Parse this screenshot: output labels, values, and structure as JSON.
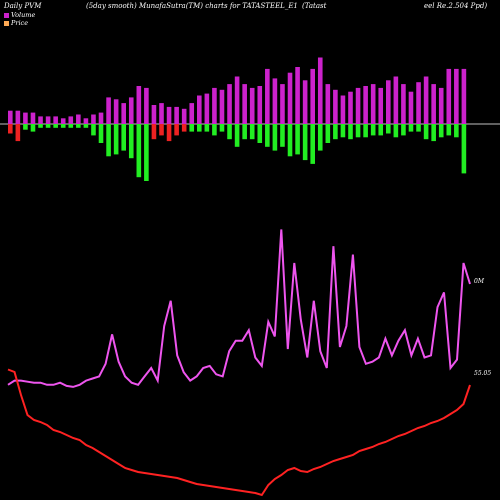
{
  "header": {
    "left": "Daily PVM",
    "mid1": "(5day smooth) MunafaSutra(TM) charts for TATASTEEL_E1",
    "mid2": "(Tatast",
    "right": "eel Re.2.504 Ppd)"
  },
  "legend": [
    {
      "label": "Volume",
      "color": "#cc22cc"
    },
    {
      "label": "Price",
      "color": "#ffaa55"
    }
  ],
  "labels": {
    "volume_end": "0M",
    "price_end": "55.05"
  },
  "colors": {
    "background": "#000000",
    "vol_up": "#cc22cc",
    "vol_down": "#22ee22",
    "vol_mixed": "#ee2222",
    "pvm_line": "#ee55ee",
    "price_line": "#ff2222",
    "axis": "#ffffff"
  },
  "chart_data": {
    "type": "bar",
    "series_note": "up/down volume bars",
    "up_values": [
      0.35,
      0.35,
      0.3,
      0.3,
      0.2,
      0.2,
      0.2,
      0.15,
      0.2,
      0.25,
      0.15,
      0.25,
      0.3,
      0.7,
      0.65,
      0.55,
      0.7,
      1.0,
      0.95,
      0.5,
      0.55,
      0.45,
      0.45,
      0.4,
      0.55,
      0.75,
      0.8,
      0.95,
      0.9,
      1.05,
      1.25,
      1.05,
      0.95,
      1.0,
      1.45,
      1.2,
      1.05,
      1.35,
      1.5,
      1.15,
      1.45,
      1.75,
      1.05,
      0.9,
      0.75,
      0.85,
      0.95,
      1.0,
      1.05,
      0.95,
      1.15,
      1.25,
      1.05,
      0.85,
      1.1,
      1.25,
      1.05,
      0.95,
      1.45,
      1.45,
      1.45
    ],
    "down_values": [
      0.25,
      0.45,
      0.15,
      0.2,
      0.1,
      0.1,
      0.1,
      0.1,
      0.1,
      0.1,
      0.1,
      0.3,
      0.5,
      0.85,
      0.8,
      0.7,
      0.9,
      1.4,
      1.5,
      0.4,
      0.3,
      0.45,
      0.3,
      0.2,
      0.2,
      0.2,
      0.2,
      0.3,
      0.2,
      0.4,
      0.6,
      0.4,
      0.4,
      0.5,
      0.6,
      0.7,
      0.6,
      0.85,
      0.8,
      0.95,
      1.05,
      0.7,
      0.5,
      0.4,
      0.35,
      0.4,
      0.35,
      0.35,
      0.3,
      0.3,
      0.25,
      0.35,
      0.3,
      0.2,
      0.2,
      0.4,
      0.45,
      0.35,
      0.3,
      0.35,
      1.3
    ],
    "down_color_kind": [
      1,
      1,
      0,
      0,
      0,
      0,
      0,
      0,
      0,
      0,
      0,
      0,
      0,
      0,
      0,
      0,
      0,
      0,
      0,
      1,
      1,
      1,
      1,
      1,
      0,
      0,
      0,
      0,
      0,
      0,
      0,
      0,
      0,
      0,
      0,
      0,
      0,
      0,
      0,
      0,
      0,
      0,
      0,
      0,
      0,
      0,
      0,
      0,
      0,
      0,
      0,
      0,
      0,
      0,
      0,
      0,
      0,
      0,
      0,
      0,
      0
    ],
    "pvm": [
      5.2,
      5.4,
      5.4,
      5.35,
      5.3,
      5.3,
      5.2,
      5.2,
      5.3,
      5.15,
      5.1,
      5.2,
      5.4,
      5.5,
      5.6,
      6.2,
      7.6,
      6.3,
      5.6,
      5.3,
      5.2,
      5.6,
      6.0,
      5.4,
      8.0,
      9.2,
      6.6,
      5.8,
      5.4,
      5.6,
      6.0,
      6.1,
      5.7,
      5.6,
      6.8,
      7.3,
      7.3,
      7.8,
      6.5,
      6.1,
      8.2,
      7.5,
      12.6,
      6.9,
      11.0,
      8.3,
      6.5,
      9.2,
      6.8,
      6.0,
      11.8,
      7.0,
      8.0,
      11.4,
      7.0,
      6.2,
      6.3,
      6.5,
      7.4,
      6.6,
      7.3,
      7.8,
      6.6,
      7.4,
      6.5,
      6.6,
      8.9,
      9.6,
      6.0,
      6.4,
      11.0,
      10.0
    ],
    "price": [
      55.05,
      54.8,
      52.5,
      50.5,
      50.0,
      49.8,
      49.5,
      49.0,
      48.8,
      48.5,
      48.2,
      48.0,
      47.5,
      47.2,
      46.8,
      46.4,
      46.0,
      45.6,
      45.2,
      45.0,
      44.8,
      44.7,
      44.6,
      44.5,
      44.4,
      44.3,
      44.2,
      44.0,
      43.8,
      43.6,
      43.5,
      43.4,
      43.3,
      43.2,
      43.1,
      43.0,
      42.9,
      42.8,
      42.7,
      42.5,
      43.5,
      44.1,
      44.5,
      45.0,
      45.2,
      44.9,
      44.8,
      45.1,
      45.3,
      45.6,
      45.9,
      46.1,
      46.3,
      46.5,
      46.9,
      47.1,
      47.3,
      47.6,
      47.8,
      48.1,
      48.4,
      48.6,
      48.9,
      49.2,
      49.4,
      49.7,
      49.9,
      50.2,
      50.6,
      51.0,
      51.6,
      53.5
    ],
    "ylim_volume": [
      -2,
      2
    ],
    "ylim_pvm": [
      4,
      14
    ],
    "ylim_price": [
      42,
      56
    ]
  }
}
